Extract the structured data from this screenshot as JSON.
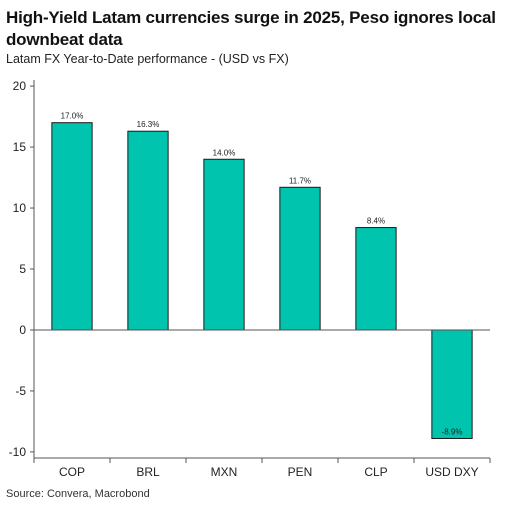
{
  "chart_data": {
    "type": "bar",
    "title": "High-Yield Latam currencies surge in 2025, Peso ignores local downbeat data",
    "subtitle": "Latam FX Year-to-Date performance - (USD vs FX)",
    "source": "Source: Convera, Macrobond",
    "categories": [
      "COP",
      "BRL",
      "MXN",
      "PEN",
      "CLP",
      "USD DXY"
    ],
    "values": [
      17.0,
      16.3,
      14.0,
      11.7,
      8.4,
      -8.9
    ],
    "data_labels": [
      "17.0%",
      "16.3%",
      "14.0%",
      "11.7%",
      "8.4%",
      "-8.9%"
    ],
    "ylim": [
      -10.5,
      20.5
    ],
    "yticks": [
      20,
      15,
      10,
      5,
      0,
      -5,
      -10
    ],
    "ytick_labels": [
      "20",
      "15",
      "10",
      "5",
      "0",
      "-5",
      "-10"
    ],
    "xlabel": "",
    "ylabel": "",
    "grid": false,
    "bar_color": "#00c4ad",
    "bar_edge_color": "#1b1b1b"
  }
}
